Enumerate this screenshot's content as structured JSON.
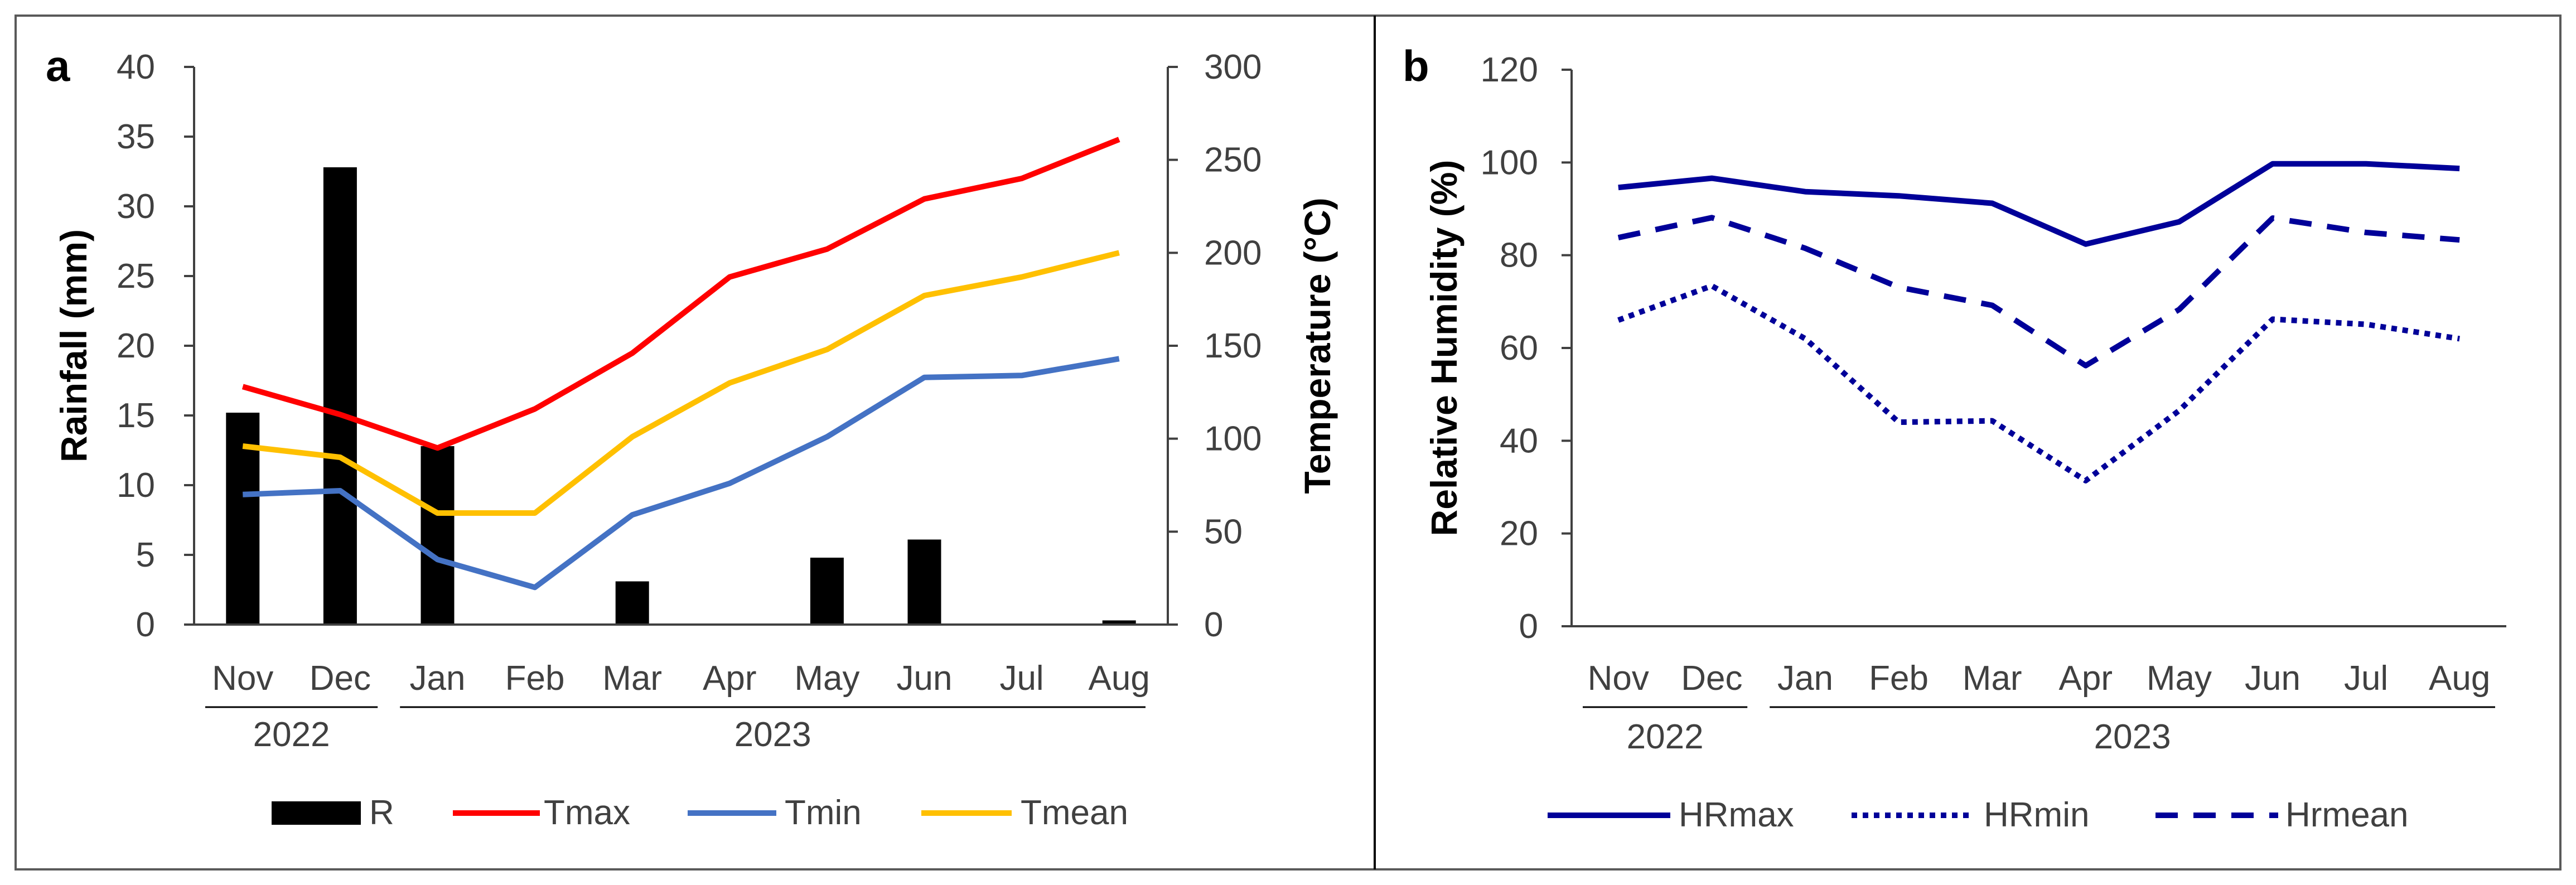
{
  "colors": {
    "rainfall": "#000000",
    "tmax": "#ff0000",
    "tmin": "#4472c4",
    "tmean": "#ffc000",
    "humidity": "#000099",
    "axis": "#404040"
  },
  "chart_data": [
    {
      "panel": "a",
      "type": "bar+line",
      "categories": [
        "Nov",
        "Dec",
        "Jan",
        "Feb",
        "Mar",
        "Apr",
        "May",
        "Jun",
        "Jul",
        "Aug"
      ],
      "year_groups": [
        {
          "label": "2022",
          "from": "Nov",
          "to": "Dec"
        },
        {
          "label": "2023",
          "from": "Jan",
          "to": "Aug"
        }
      ],
      "ylabel_left": "Rainfall (mm)",
      "ylabel_right": "Temperature (°C)",
      "ylim_left": [
        0,
        40
      ],
      "ylim_right": [
        0,
        300
      ],
      "yticks_left": [
        "0",
        "5",
        "10",
        "15",
        "20",
        "25",
        "30",
        "35",
        "40"
      ],
      "yticks_right": [
        "0",
        "50",
        "100",
        "150",
        "200",
        "250",
        "300"
      ],
      "bars": {
        "name": "R",
        "axis": "left",
        "values": [
          15.2,
          32.8,
          12.8,
          0,
          3.1,
          0,
          4.8,
          6.1,
          0,
          0.3
        ]
      },
      "series": [
        {
          "name": "Tmax",
          "axis": "right",
          "values": [
            128,
            113,
            95,
            116,
            146,
            187,
            202,
            229,
            240,
            261
          ]
        },
        {
          "name": "Tmin",
          "axis": "right",
          "values": [
            70,
            72,
            35,
            20,
            59,
            76,
            101,
            133,
            134,
            143
          ]
        },
        {
          "name": "Tmean",
          "axis": "right",
          "values": [
            96,
            90,
            60,
            60,
            101,
            130,
            148,
            177,
            187,
            200
          ]
        }
      ],
      "legend_position": "bottom"
    },
    {
      "panel": "b",
      "type": "line",
      "categories": [
        "Nov",
        "Dec",
        "Jan",
        "Feb",
        "Mar",
        "Apr",
        "May",
        "Jun",
        "Jul",
        "Aug"
      ],
      "year_groups": [
        {
          "label": "2022",
          "from": "Nov",
          "to": "Dec"
        },
        {
          "label": "2023",
          "from": "Jan",
          "to": "Aug"
        }
      ],
      "ylabel": "Relative Humidity (%)",
      "ylim": [
        0,
        120
      ],
      "yticks": [
        "0",
        "20",
        "40",
        "60",
        "80",
        "100",
        "120"
      ],
      "series": [
        {
          "name": "HRmax",
          "style": "solid",
          "values": [
            94.6,
            96.6,
            93.7,
            92.8,
            91.2,
            82.4,
            87.2,
            99.7,
            99.7,
            98.7
          ]
        },
        {
          "name": "HRmin",
          "style": "dotted",
          "values": [
            66,
            73.4,
            62,
            44,
            44.3,
            31.4,
            46.5,
            66.2,
            65.1,
            62
          ]
        },
        {
          "name": "Hrmean",
          "style": "dashed",
          "values": [
            83.8,
            88.1,
            81.5,
            73.1,
            69.2,
            56.2,
            68.3,
            88,
            84.9,
            83.3
          ]
        }
      ],
      "legend_position": "bottom"
    }
  ]
}
